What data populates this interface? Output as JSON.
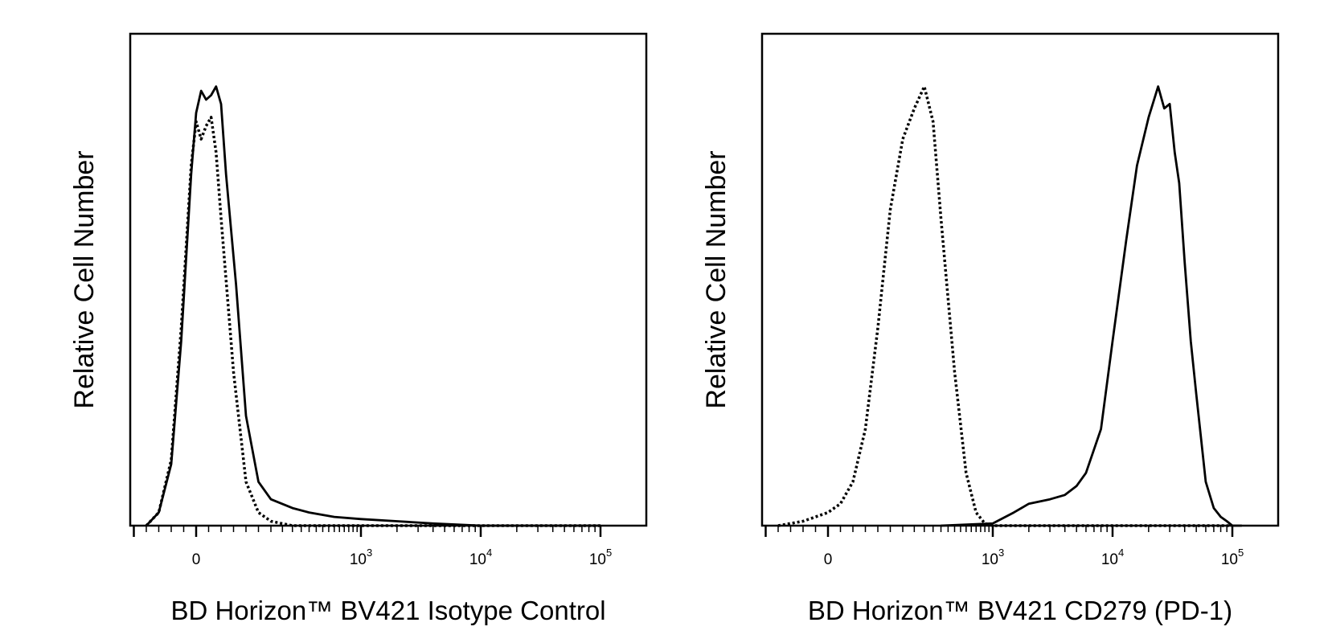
{
  "chart_data": [
    {
      "type": "line",
      "ylabel": "Relative Cell Number",
      "xlabel": "BD Horizon™ BV421 Isotype Control",
      "x_scale": "logicle",
      "x_tick_labels": [
        {
          "value": 0,
          "base": "0",
          "exp": ""
        },
        {
          "value": 1000,
          "base": "10",
          "exp": "3"
        },
        {
          "value": 10000,
          "base": "10",
          "exp": "4"
        },
        {
          "value": 100000,
          "base": "10",
          "exp": "5"
        }
      ],
      "ylim": [
        0,
        1.12
      ],
      "grid": false,
      "series": [
        {
          "style": "solid",
          "x": [
            -200,
            -150,
            -100,
            -60,
            -20,
            0,
            20,
            40,
            60,
            80,
            100,
            120,
            160,
            200,
            250,
            300,
            400,
            500,
            700,
            1000,
            2000,
            4000,
            10000,
            100000
          ],
          "y": [
            0,
            0.03,
            0.14,
            0.42,
            0.8,
            0.94,
            0.99,
            0.97,
            0.98,
            1.0,
            0.96,
            0.8,
            0.55,
            0.25,
            0.1,
            0.06,
            0.04,
            0.03,
            0.02,
            0.015,
            0.01,
            0.005,
            0,
            0
          ]
        },
        {
          "style": "dotted",
          "x": [
            -200,
            -150,
            -100,
            -60,
            -20,
            0,
            20,
            40,
            60,
            80,
            100,
            150,
            200,
            250,
            300,
            400,
            500,
            1000,
            100000
          ],
          "y": [
            0,
            0.03,
            0.15,
            0.45,
            0.82,
            0.92,
            0.88,
            0.91,
            0.93,
            0.85,
            0.7,
            0.35,
            0.1,
            0.03,
            0.01,
            0,
            0,
            0,
            0
          ]
        }
      ]
    },
    {
      "type": "line",
      "ylabel": "Relative Cell Number",
      "xlabel": "BD Horizon™ BV421  CD279 (PD-1)",
      "x_scale": "logicle",
      "x_tick_labels": [
        {
          "value": 0,
          "base": "0",
          "exp": ""
        },
        {
          "value": 1000,
          "base": "10",
          "exp": "3"
        },
        {
          "value": 10000,
          "base": "10",
          "exp": "4"
        },
        {
          "value": 100000,
          "base": "10",
          "exp": "5"
        }
      ],
      "ylim": [
        0,
        1.12
      ],
      "grid": false,
      "series": [
        {
          "style": "solid",
          "x": [
            500,
            1000,
            1500,
            2000,
            3000,
            4000,
            5000,
            6000,
            8000,
            10000,
            13000,
            16000,
            20000,
            24000,
            27000,
            30000,
            33000,
            36000,
            40000,
            45000,
            50000,
            60000,
            70000,
            80000,
            90000,
            100000,
            120000
          ],
          "y": [
            0,
            0.005,
            0.03,
            0.05,
            0.06,
            0.07,
            0.09,
            0.12,
            0.22,
            0.42,
            0.65,
            0.82,
            0.93,
            1.0,
            0.95,
            0.96,
            0.85,
            0.78,
            0.6,
            0.42,
            0.3,
            0.1,
            0.04,
            0.02,
            0.01,
            0,
            0
          ]
        },
        {
          "style": "dotted",
          "x": [
            -200,
            -100,
            -50,
            0,
            50,
            100,
            150,
            200,
            250,
            300,
            350,
            400,
            450,
            500,
            600,
            700,
            800,
            900,
            1000,
            100000
          ],
          "y": [
            0,
            0.01,
            0.02,
            0.03,
            0.05,
            0.1,
            0.22,
            0.45,
            0.72,
            0.88,
            0.95,
            1.0,
            0.92,
            0.7,
            0.35,
            0.12,
            0.03,
            0.005,
            0,
            0
          ]
        }
      ]
    }
  ]
}
